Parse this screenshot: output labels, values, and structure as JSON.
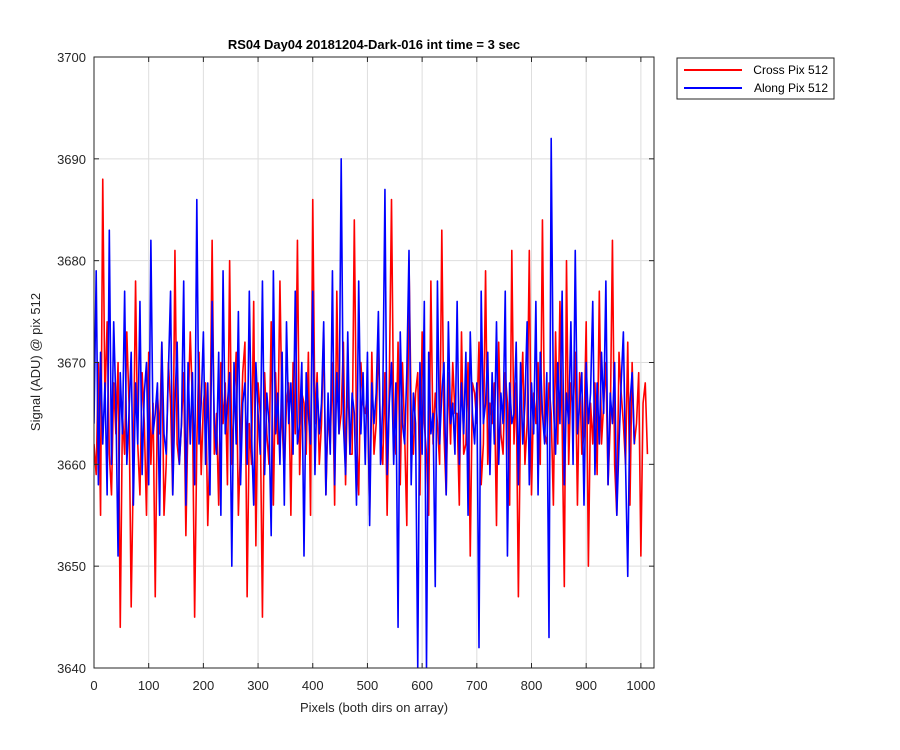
{
  "chart_data": {
    "type": "line",
    "title": "RS04 Day04 20181204-Dark-016 int time = 3 sec",
    "xlabel": "Pixels (both dirs on array)",
    "ylabel": "Signal (ADU) @ pix 512",
    "xlim": [
      0,
      1024
    ],
    "ylim": [
      3640,
      3700
    ],
    "xticks": [
      "0",
      "100",
      "200",
      "300",
      "400",
      "500",
      "600",
      "700",
      "800",
      "900",
      "1000"
    ],
    "yticks": [
      "3640",
      "3650",
      "3660",
      "3670",
      "3680",
      "3690",
      "3700"
    ],
    "grid": true,
    "legend_position": "outside-top-right",
    "series": [
      {
        "name": "Cross Pix 512",
        "color": "#ff0000",
        "sampling": "one point per 4 pixels, x = 0..1020",
        "values": [
          3662,
          3659,
          3670,
          3655,
          3688,
          3666,
          3674,
          3661,
          3657,
          3668,
          3663,
          3670,
          3644,
          3665,
          3661,
          3673,
          3666,
          3646,
          3660,
          3678,
          3662,
          3657,
          3669,
          3664,
          3655,
          3671,
          3660,
          3666,
          3647,
          3667,
          3663,
          3672,
          3655,
          3660,
          3670,
          3666,
          3657,
          3681,
          3662,
          3660,
          3664,
          3669,
          3653,
          3665,
          3673,
          3666,
          3645,
          3662,
          3671,
          3659,
          3666,
          3668,
          3654,
          3662,
          3682,
          3661,
          3665,
          3656,
          3670,
          3664,
          3668,
          3658,
          3680,
          3660,
          3666,
          3671,
          3655,
          3662,
          3669,
          3672,
          3647,
          3664,
          3660,
          3676,
          3652,
          3668,
          3665,
          3645,
          3669,
          3663,
          3660,
          3674,
          3656,
          3669,
          3662,
          3678,
          3664,
          3659,
          3666,
          3668,
          3655,
          3670,
          3663,
          3682,
          3659,
          3667,
          3666,
          3661,
          3671,
          3655,
          3686,
          3664,
          3669,
          3660,
          3664,
          3673,
          3657,
          3665,
          3662,
          3670,
          3656,
          3677,
          3663,
          3665,
          3672,
          3658,
          3669,
          3661,
          3661,
          3684,
          3663,
          3657,
          3670,
          3666,
          3665,
          3667,
          3655,
          3671,
          3661,
          3664,
          3672,
          3663,
          3660,
          3669,
          3655,
          3668,
          3686,
          3664,
          3661,
          3672,
          3658,
          3670,
          3663,
          3654,
          3680,
          3665,
          3661,
          3667,
          3669,
          3657,
          3673,
          3664,
          3661,
          3655,
          3678,
          3662,
          3667,
          3664,
          3660,
          3683,
          3663,
          3657,
          3669,
          3662,
          3670,
          3665,
          3665,
          3656,
          3673,
          3661,
          3662,
          3670,
          3651,
          3668,
          3667,
          3664,
          3672,
          3658,
          3662,
          3679,
          3660,
          3666,
          3664,
          3668,
          3654,
          3672,
          3663,
          3661,
          3669,
          3666,
          3656,
          3681,
          3662,
          3668,
          3647,
          3665,
          3671,
          3660,
          3664,
          3681,
          3657,
          3667,
          3664,
          3670,
          3660,
          3684,
          3663,
          3662,
          3668,
          3665,
          3656,
          3673,
          3662,
          3676,
          3664,
          3648,
          3680,
          3660,
          3668,
          3665,
          3671,
          3656,
          3669,
          3661,
          3663,
          3674,
          3650,
          3666,
          3662,
          3668,
          3659,
          3677,
          3662,
          3666,
          3670,
          3658,
          3664,
          3682,
          3660,
          3655,
          3671,
          3667,
          3664,
          3660,
          3672,
          3656,
          3670,
          3662,
          3664,
          3669,
          3651,
          3666,
          3668,
          3661
        ]
      },
      {
        "name": "Along Pix 512",
        "color": "#0000ff",
        "sampling": "one point per 4 pixels, x = 0..1020",
        "values": [
          3664,
          3679,
          3658,
          3671,
          3662,
          3668,
          3657,
          3683,
          3660,
          3674,
          3666,
          3651,
          3669,
          3663,
          3677,
          3660,
          3665,
          3671,
          3656,
          3668,
          3662,
          3676,
          3659,
          3667,
          3670,
          3658,
          3682,
          3663,
          3665,
          3668,
          3655,
          3672,
          3663,
          3661,
          3669,
          3677,
          3657,
          3666,
          3672,
          3660,
          3664,
          3678,
          3656,
          3670,
          3662,
          3669,
          3658,
          3686,
          3662,
          3666,
          3673,
          3660,
          3668,
          3657,
          3676,
          3664,
          3661,
          3671,
          3655,
          3679,
          3663,
          3666,
          3669,
          3650,
          3670,
          3662,
          3675,
          3658,
          3666,
          3668,
          3660,
          3677,
          3663,
          3656,
          3670,
          3665,
          3661,
          3678,
          3659,
          3667,
          3664,
          3653,
          3679,
          3663,
          3667,
          3660,
          3671,
          3656,
          3674,
          3664,
          3668,
          3661,
          3677,
          3662,
          3664,
          3670,
          3651,
          3669,
          3665,
          3662,
          3677,
          3659,
          3668,
          3663,
          3666,
          3674,
          3657,
          3667,
          3661,
          3679,
          3658,
          3669,
          3663,
          3690,
          3664,
          3659,
          3673,
          3661,
          3667,
          3665,
          3656,
          3678,
          3663,
          3669,
          3660,
          3671,
          3654,
          3668,
          3664,
          3667,
          3675,
          3660,
          3666,
          3687,
          3659,
          3666,
          3670,
          3660,
          3668,
          3644,
          3673,
          3664,
          3662,
          3669,
          3681,
          3658,
          3667,
          3664,
          3640,
          3670,
          3661,
          3676,
          3640,
          3671,
          3663,
          3665,
          3648,
          3678,
          3662,
          3667,
          3670,
          3657,
          3674,
          3664,
          3666,
          3661,
          3676,
          3660,
          3668,
          3663,
          3671,
          3655,
          3673,
          3665,
          3662,
          3668,
          3642,
          3677,
          3664,
          3666,
          3671,
          3659,
          3669,
          3662,
          3674,
          3660,
          3667,
          3664,
          3677,
          3651,
          3668,
          3664,
          3665,
          3672,
          3658,
          3670,
          3662,
          3666,
          3674,
          3658,
          3668,
          3663,
          3676,
          3657,
          3671,
          3665,
          3662,
          3669,
          3643,
          3692,
          3666,
          3661,
          3670,
          3664,
          3677,
          3658,
          3667,
          3664,
          3674,
          3660,
          3681,
          3663,
          3666,
          3669,
          3656,
          3670,
          3664,
          3667,
          3676,
          3659,
          3668,
          3662,
          3671,
          3665,
          3678,
          3658,
          3667,
          3664,
          3670,
          3655,
          3662,
          3668,
          3673,
          3660,
          3649,
          3666,
          3669,
          3662
        ]
      }
    ]
  }
}
